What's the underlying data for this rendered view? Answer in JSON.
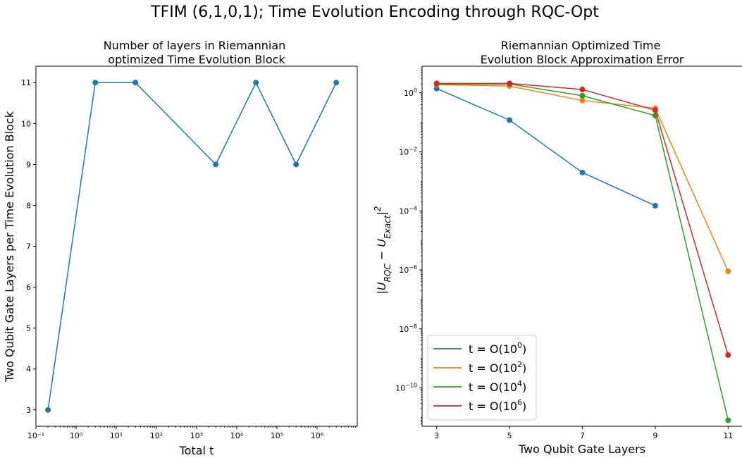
{
  "figure": {
    "suptitle": "TFIM (6,1,0,1); Time Evolution Encoding through RQC-Opt"
  },
  "chart_data": [
    {
      "type": "line",
      "title_lines": [
        "Number of layers in Riemannian",
        "optimized Time Evolution Block"
      ],
      "xlabel": "Total t",
      "ylabel": "Two Qubit Gate Layers per Time Evolution Block",
      "xscale": "log",
      "xlim": [
        0.1,
        10000000
      ],
      "ylim": [
        2.6,
        11.4
      ],
      "grid": false,
      "xticks": [
        {
          "value": 0.1,
          "label": "10⁻¹"
        },
        {
          "value": 1,
          "label": "10⁰"
        },
        {
          "value": 10,
          "label": "10¹"
        },
        {
          "value": 100,
          "label": "10²"
        },
        {
          "value": 1000,
          "label": "10³"
        },
        {
          "value": 10000,
          "label": "10⁴"
        },
        {
          "value": 100000,
          "label": "10⁵"
        },
        {
          "value": 1000000,
          "label": "10⁶"
        }
      ],
      "yticks": [
        {
          "value": 3,
          "label": "3"
        },
        {
          "value": 4,
          "label": "4"
        },
        {
          "value": 5,
          "label": "5"
        },
        {
          "value": 6,
          "label": "6"
        },
        {
          "value": 7,
          "label": "7"
        },
        {
          "value": 8,
          "label": "8"
        },
        {
          "value": 9,
          "label": "9"
        },
        {
          "value": 10,
          "label": "10"
        },
        {
          "value": 11,
          "label": "11"
        }
      ],
      "series": [
        {
          "color": "#1f77b4",
          "x": [
            0.2,
            3,
            30,
            3000,
            30000,
            300000,
            3000000
          ],
          "y": [
            3,
            11,
            11,
            9,
            11,
            9,
            11
          ]
        }
      ]
    },
    {
      "type": "line",
      "title_lines": [
        "Riemannian Optimized Time",
        "Evolution Block Approximation Error"
      ],
      "xlabel": "Two Qubit Gate Layers",
      "ylabel": "|U_RQC − U_Exact|²",
      "yscale": "log",
      "xlim": [
        2.6,
        11.4
      ],
      "ylim": [
        5e-12,
        8
      ],
      "grid": false,
      "legend_loc": "lower-left",
      "xticks": [
        {
          "value": 3,
          "label": "3"
        },
        {
          "value": 5,
          "label": "5"
        },
        {
          "value": 7,
          "label": "7"
        },
        {
          "value": 9,
          "label": "9"
        },
        {
          "value": 11,
          "label": "11"
        }
      ],
      "yticks": [
        {
          "value": 1,
          "base": "10",
          "exp": "0"
        },
        {
          "value": 0.01,
          "base": "10",
          "exp": "−2"
        },
        {
          "value": 0.0001,
          "base": "10",
          "exp": "−4"
        },
        {
          "value": 1e-06,
          "base": "10",
          "exp": "−6"
        },
        {
          "value": 1e-08,
          "base": "10",
          "exp": "−8"
        },
        {
          "value": 1e-10,
          "base": "10",
          "exp": "−10"
        }
      ],
      "series": [
        {
          "legend_pre": "t = O(10",
          "legend_exp": "0",
          "legend_post": ")",
          "color": "#1f77b4",
          "x": [
            3,
            5,
            7,
            9
          ],
          "y": [
            1.4,
            0.12,
            0.002,
            0.00015
          ]
        },
        {
          "legend_pre": "t = O(10",
          "legend_exp": "2",
          "legend_post": ")",
          "color": "#ff7f0e",
          "x": [
            3,
            5,
            7,
            9,
            11
          ],
          "y": [
            1.9,
            1.7,
            0.55,
            0.3,
            9e-07
          ]
        },
        {
          "legend_pre": "t = O(10",
          "legend_exp": "4",
          "legend_post": ")",
          "color": "#2ca02c",
          "x": [
            3,
            5,
            7,
            9,
            11
          ],
          "y": [
            2.0,
            2.0,
            0.8,
            0.17,
            8e-12
          ]
        },
        {
          "legend_pre": "t = O(10",
          "legend_exp": "6",
          "legend_post": ")",
          "color": "#d62728",
          "x": [
            3,
            5,
            7,
            9,
            11
          ],
          "y": [
            2.1,
            2.1,
            1.3,
            0.26,
            1.3e-09
          ]
        }
      ]
    }
  ]
}
